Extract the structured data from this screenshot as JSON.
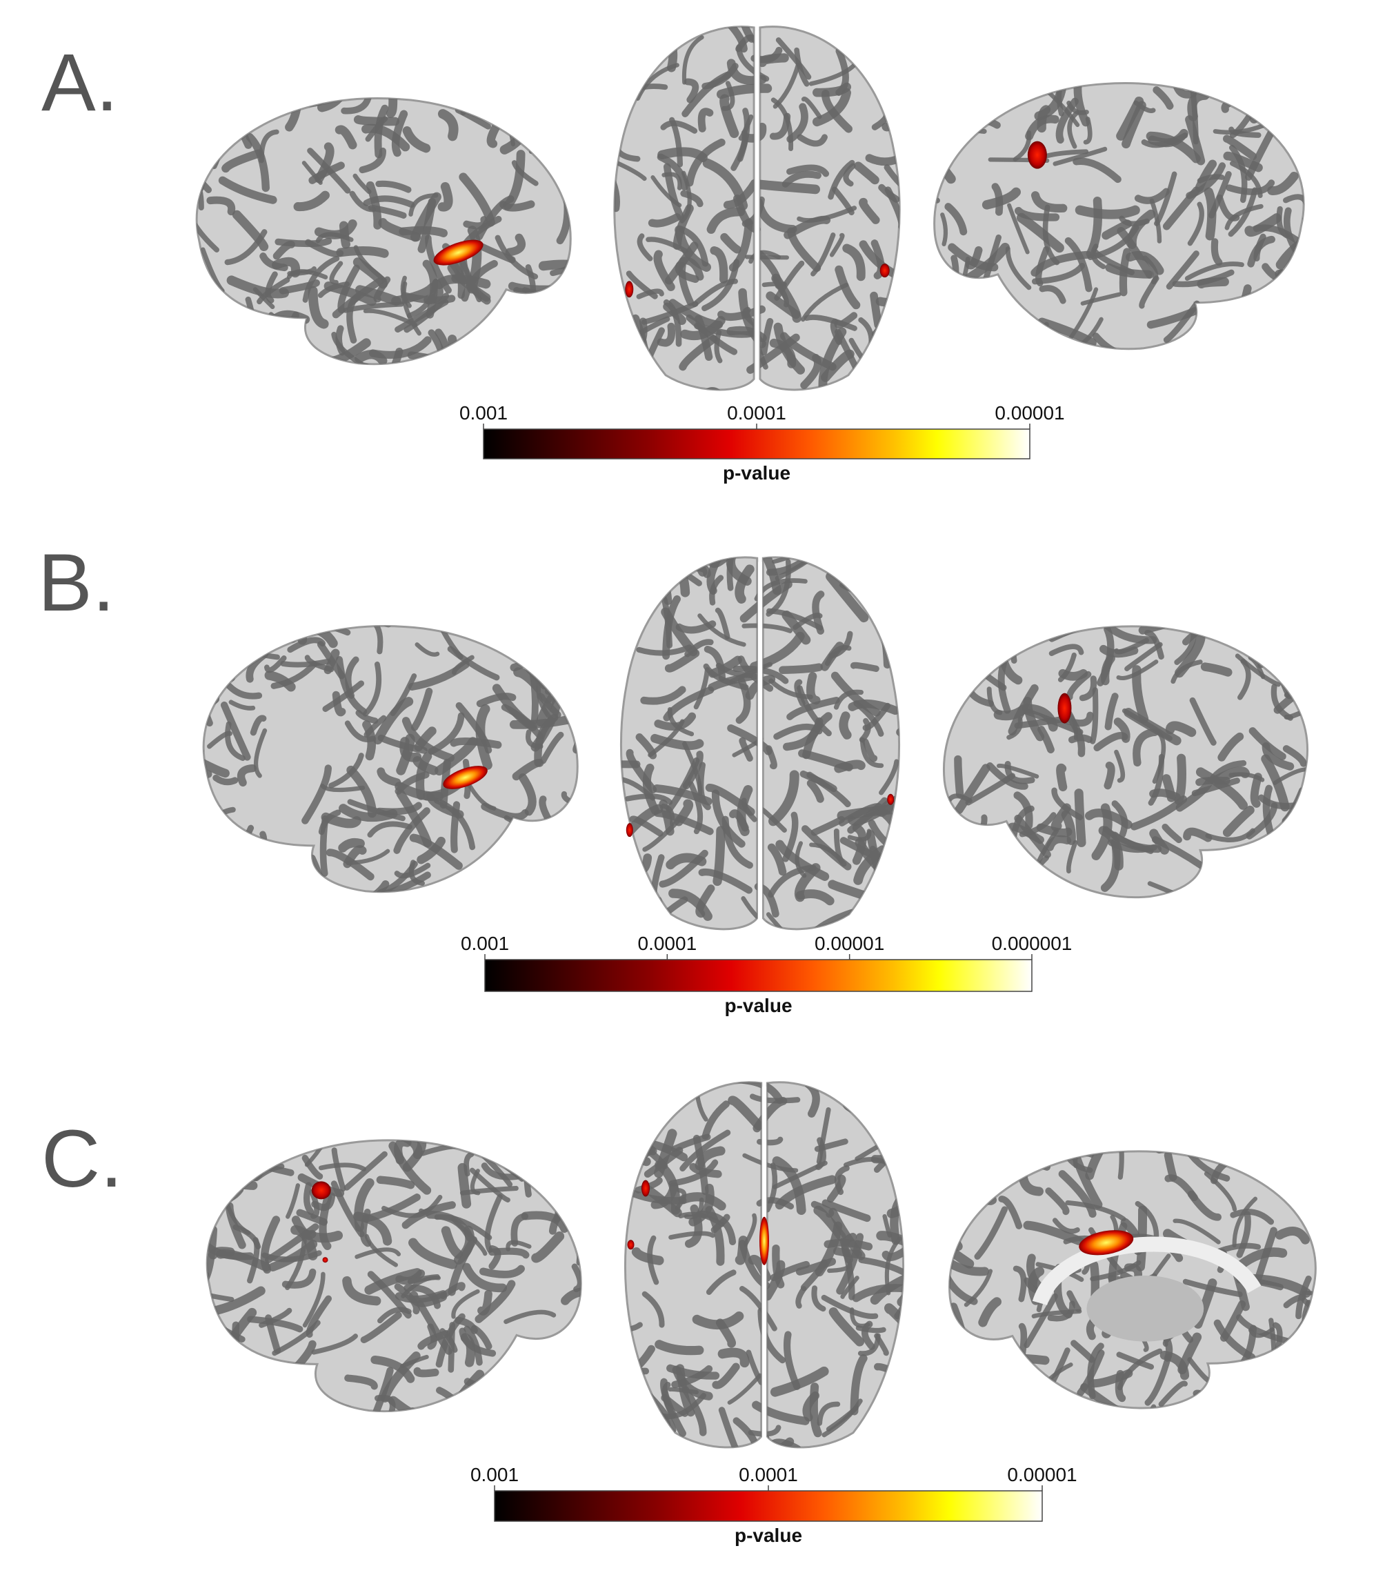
{
  "panels": [
    {
      "label": "A.",
      "colorbar": {
        "ticks": [
          0.001,
          0.0001,
          1e-05
        ],
        "title": "p-value"
      }
    },
    {
      "label": "B.",
      "colorbar": {
        "ticks": [
          0.001,
          0.0001,
          1e-05,
          1e-06
        ],
        "title": "p-value"
      }
    },
    {
      "label": "C.",
      "colorbar": {
        "ticks": [
          0.001,
          0.0001,
          1e-05
        ],
        "title": "p-value"
      }
    }
  ]
}
